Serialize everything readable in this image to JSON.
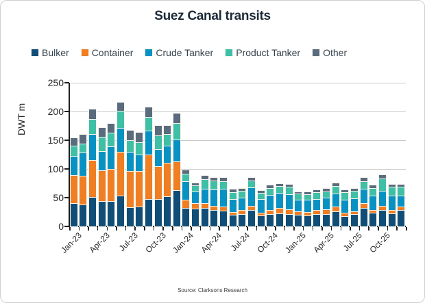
{
  "title": "Suez Canal transits",
  "source": "Source: Clarksons Research",
  "colors": {
    "bulker": "#104E78",
    "container": "#F07E23",
    "crude_tanker": "#0891C3",
    "product_tanker": "#3FBFA6",
    "other": "#5A6B7E",
    "grid": "#C9C9C9",
    "axis": "#1F1F1F",
    "segment_border": "#F8F5EC"
  },
  "chart_data": {
    "type": "bar",
    "stacked": true,
    "title": "Suez Canal transits",
    "ylabel": "DWT m",
    "ylim": [
      0,
      250
    ],
    "ytick_step": 50,
    "grid": "horizontal",
    "legend_position": "top",
    "xtick_label_every": 3,
    "categories": [
      "Jan-23",
      "Feb-23",
      "Mar-23",
      "Apr-23",
      "May-23",
      "Jun-23",
      "Jul-23",
      "Aug-23",
      "Sep-23",
      "Oct-23",
      "Nov-23",
      "Dec-23",
      "Jan-24",
      "Feb-24",
      "Mar-24",
      "Apr-24",
      "May-24",
      "Jun-24",
      "Jul-24",
      "Aug-24",
      "Sep-24",
      "Oct-24",
      "Nov-24",
      "Dec-24",
      "Jan-25",
      "Feb-25",
      "Mar-25",
      "Apr-25",
      "May-25",
      "Jun-25",
      "Jul-25",
      "Aug-25",
      "Sep-25",
      "Oct-25",
      "Nov-25",
      "Dec-25"
    ],
    "series": [
      {
        "name": "Bulker",
        "color": "#104E78",
        "values": [
          40,
          38,
          51,
          44,
          44,
          53,
          33,
          34,
          48,
          48,
          52,
          63,
          32,
          31,
          32,
          28,
          27,
          20,
          22,
          28,
          19,
          22,
          23,
          22,
          20,
          19,
          21,
          22,
          26,
          18,
          21,
          32,
          24,
          28,
          23,
          28
        ]
      },
      {
        "name": "Container",
        "color": "#F07E23",
        "values": [
          49,
          50,
          64,
          54,
          56,
          77,
          63,
          63,
          77,
          57,
          59,
          50,
          14,
          9,
          8,
          8,
          7,
          5,
          6,
          8,
          5,
          6,
          9,
          8,
          6,
          6,
          7,
          8,
          8,
          6,
          5,
          8,
          5,
          8,
          5,
          6
        ]
      },
      {
        "name": "Crude Tanker",
        "color": "#0891C3",
        "values": [
          34,
          41,
          46,
          33,
          39,
          41,
          34,
          28,
          42,
          29,
          30,
          38,
          32,
          21,
          26,
          28,
          32,
          23,
          22,
          32,
          24,
          27,
          26,
          26,
          21,
          21,
          20,
          20,
          23,
          22,
          23,
          26,
          24,
          26,
          26,
          20
        ]
      },
      {
        "name": "Product Tanker",
        "color": "#3FBFA6",
        "values": [
          17,
          15,
          26,
          25,
          24,
          30,
          20,
          21,
          24,
          24,
          20,
          29,
          14,
          10,
          16,
          16,
          13,
          12,
          12,
          12,
          10,
          12,
          12,
          13,
          10,
          10,
          12,
          11,
          13,
          14,
          13,
          13,
          14,
          21,
          15,
          15
        ]
      },
      {
        "name": "Other",
        "color": "#5A6B7E",
        "values": [
          14,
          15,
          17,
          16,
          16,
          15,
          17,
          17,
          16,
          17,
          14,
          16,
          6,
          4,
          6,
          4,
          5,
          4,
          4,
          5,
          4,
          4,
          4,
          4,
          3,
          3,
          3,
          4,
          5,
          3,
          4,
          5,
          4,
          6,
          4,
          4
        ]
      }
    ]
  }
}
